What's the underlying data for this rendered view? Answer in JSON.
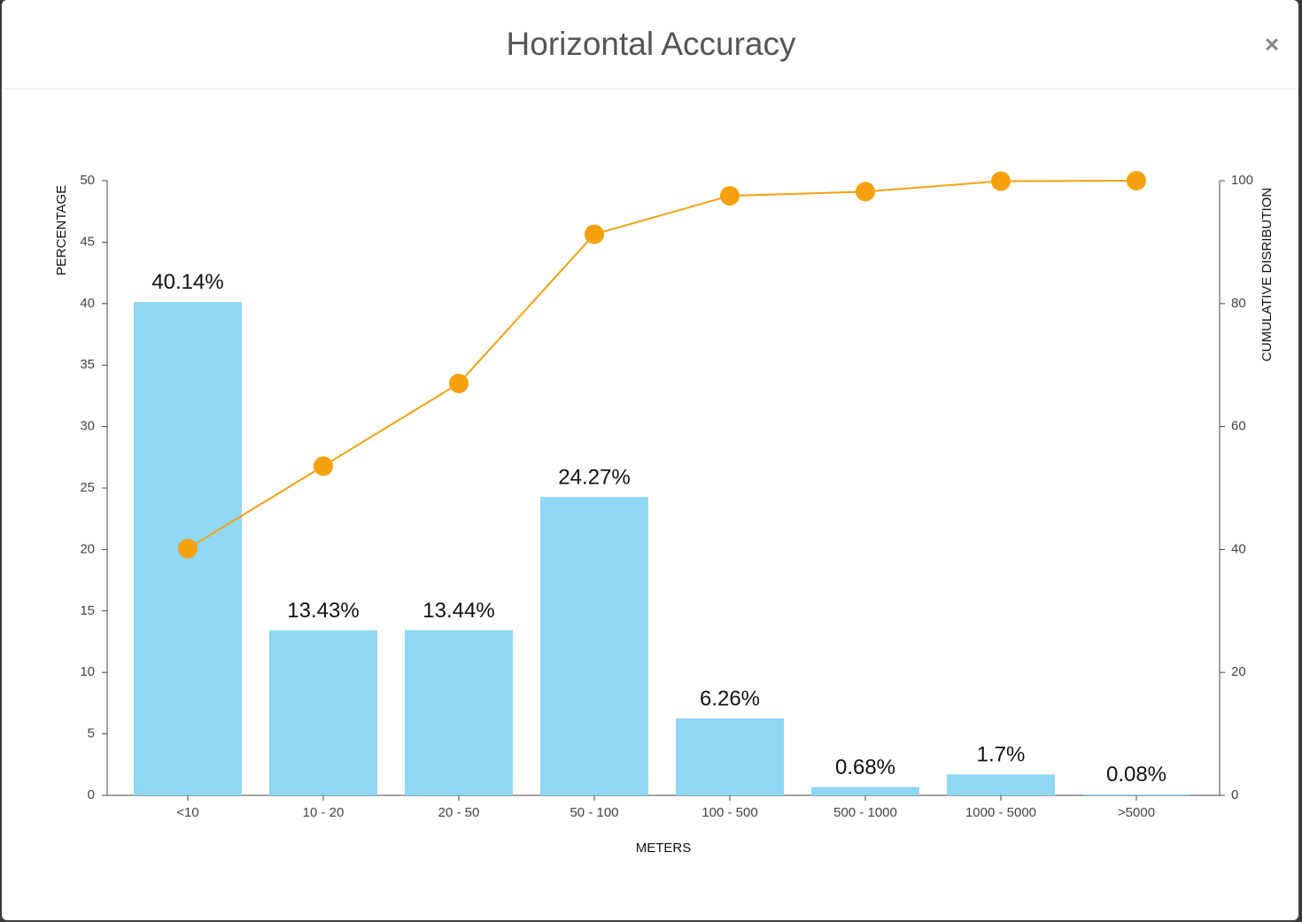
{
  "close": "×",
  "chart_data": {
    "type": "bar",
    "title": "Horizontal Accuracy",
    "xlabel": "METERS",
    "ylabel": "PERCENTAGE",
    "y2label": "CUMULATIVE DISRIBUTION",
    "categories": [
      "<10",
      "10 - 20",
      "20 - 50",
      "50 - 100",
      "100 - 500",
      "500 - 1000",
      "1000 - 5000",
      ">5000"
    ],
    "series": [
      {
        "type": "bar",
        "color": "#8fd7f5",
        "values": [
          40.14,
          13.43,
          13.44,
          24.27,
          6.26,
          0.68,
          1.7,
          0.08
        ],
        "value_labels": [
          "40.14%",
          "13.43%",
          "13.44%",
          "24.27%",
          "6.26%",
          "0.68%",
          "1.7%",
          "0.08%"
        ]
      },
      {
        "type": "line",
        "axis": "y2",
        "color": "#f5a10f",
        "values": [
          40.14,
          53.57,
          67.01,
          91.28,
          97.54,
          98.22,
          99.92,
          100
        ]
      }
    ],
    "ylim": [
      0,
      50
    ],
    "yticks": [
      0,
      5,
      10,
      15,
      20,
      25,
      30,
      35,
      40,
      45,
      50
    ],
    "y2lim": [
      0,
      100
    ],
    "y2ticks": [
      0,
      20,
      40,
      60,
      80,
      100
    ],
    "grid": false
  }
}
